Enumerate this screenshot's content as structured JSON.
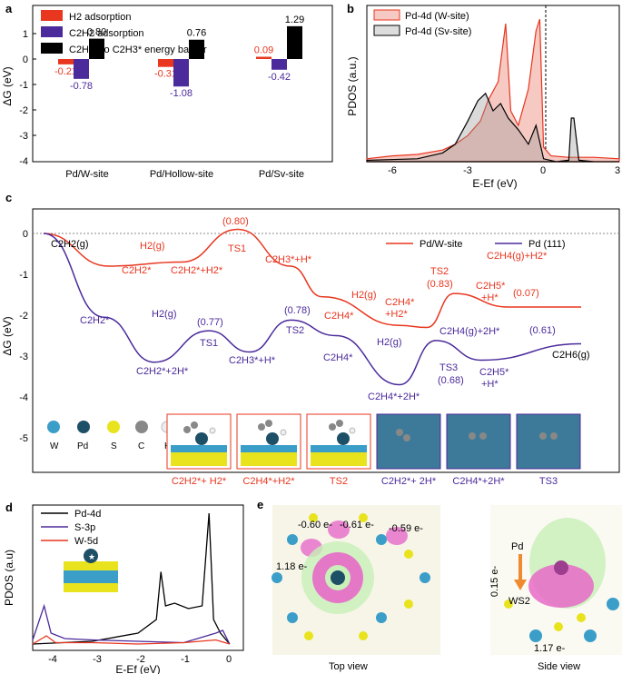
{
  "panels": {
    "a": "a",
    "b": "b",
    "c": "c",
    "d": "d",
    "e": "e"
  },
  "panel_a": {
    "ylabel": "ΔG (eV)",
    "yticks": [
      "1",
      "0",
      "-1",
      "-2",
      "-3",
      "-4"
    ],
    "legend": [
      "H2 adsorption",
      "C2H2 adsorption",
      "C2H2* to C2H3* energy barrier"
    ],
    "colors": {
      "h2": "#e8361f",
      "c2h2": "#4b2a9b",
      "barrier": "#000000"
    }
  },
  "panel_b": {
    "ylabel": "PDOS (a.u.)",
    "xlabel": "E-Ef (eV)",
    "xticks": [
      "-6",
      "-3",
      "0",
      "3"
    ],
    "legend": [
      "Pd-4d (W-site)",
      "Pd-4d (Sv-site)"
    ]
  },
  "panel_c": {
    "ylabel": "ΔG (eV)",
    "yticks": [
      "0",
      "-1",
      "-2",
      "-3",
      "-4",
      "-5"
    ],
    "legend": [
      "Pd/W-site",
      "Pd (111)"
    ],
    "colors": {
      "w_site": "#e8361f",
      "pd111": "#4b2a9b"
    },
    "labels": {
      "start": "C2H2(g)",
      "h2g_1": "H2(g)",
      "c2h2_red": "C2H2*",
      "c2h2h2_red": "C2H2*+H2*",
      "ts1_val": "(0.80)",
      "ts1": "TS1",
      "c2h3h": "C2H3*+H*",
      "h2g_2": "H2(g)",
      "c2h4h2_a": "C2H4*",
      "c2h4h2_b": "+H2*",
      "c2h4_red": "C2H4*",
      "ts2_red": "TS2",
      "ts2_red_val": "(0.83)",
      "c2h4g": "C2H4(g)+H2*",
      "c2h5_red_a": "C2H5*",
      "c2h5_red_b": "+H*",
      "val_007": "(0.07)",
      "c2h6": "C2H6(g)",
      "c2h2_blue": "C2H2*",
      "h2g_blue": "H2(g)",
      "c2h2_2h": "C2H2*+2H*",
      "ts1_blue_val": "(0.77)",
      "ts1_blue": "TS1",
      "c2h3h_blue": "C2H3*+H*",
      "ts2_blue_val": "(0.78)",
      "ts2_blue": "TS2",
      "c2h4_blue": "C2H4*",
      "h2g_blue2": "H2(g)",
      "c2h4_2h": "C2H4*+2H*",
      "c2h4g_2h": "C2H4(g)+2H*",
      "ts3": "TS3",
      "ts3_val": "(0.68)",
      "c2h5_blue_a": "C2H5*",
      "c2h5_blue_b": "+H*",
      "val_061": "(0.61)"
    },
    "atoms": [
      "W",
      "Pd",
      "S",
      "C",
      "H"
    ],
    "structures": [
      "C2H2*+ H2*",
      "C2H4*+H2*",
      "TS2",
      "C2H2*+ 2H*",
      "C2H4*+2H*",
      "TS3"
    ]
  },
  "panel_d": {
    "ylabel": "PDOS (a.u)",
    "xlabel": "E-Ef (eV)",
    "xticks": [
      "-4",
      "-3",
      "-2",
      "-1",
      "0"
    ],
    "legend": [
      "Pd-4d",
      "S-3p",
      "W-5d"
    ],
    "colors": {
      "pd": "#000000",
      "s": "#4b2a9b",
      "w": "#e8361f"
    }
  },
  "panel_e": {
    "top_view": "Top view",
    "side_view": "Side view",
    "charges": [
      "-0.60 e-",
      "-0.61 e-",
      "-0.59 e-",
      "1.18 e-",
      "0.15 e-",
      "1.17 e-"
    ],
    "pd": "Pd",
    "ws2": "WS2"
  },
  "chart_data": [
    {
      "type": "bar",
      "categories": [
        "Pd/W-site",
        "Pd/Hollow-site",
        "Pd/Sv-site"
      ],
      "series": [
        {
          "name": "H2 adsorption",
          "values": [
            -0.21,
            -0.31,
            0.09
          ]
        },
        {
          "name": "C2H2 adsorption",
          "values": [
            -0.78,
            -1.08,
            -0.42
          ]
        },
        {
          "name": "C2H2* to C2H3* energy barrier",
          "values": [
            0.8,
            0.76,
            1.29
          ]
        }
      ],
      "data_labels": {
        "h2": [
          "-0.21",
          "-0.31",
          "0.09"
        ],
        "c2h2": [
          "-0.78",
          "-1.08",
          "-0.42"
        ],
        "barrier": [
          "0.80",
          "0.76",
          "1.29"
        ]
      },
      "ylabel": "ΔG (eV)",
      "ylim": [
        -4,
        2
      ]
    },
    {
      "type": "area",
      "xlabel": "E-Ef (eV)",
      "ylabel": "PDOS (a.u.)",
      "xlim": [
        -7,
        3
      ],
      "series": [
        {
          "name": "Pd-4d (W-site)",
          "x": [
            -7,
            -6,
            -5,
            -4,
            -3.5,
            -3,
            -2.5,
            -2.2,
            -1.8,
            -1.5,
            -1.3,
            -1.0,
            -0.6,
            -0.3,
            -0.15,
            0,
            0.3,
            1,
            2,
            3
          ],
          "y": [
            0.02,
            0.04,
            0.05,
            0.08,
            0.12,
            0.18,
            0.28,
            0.42,
            0.55,
            0.95,
            0.35,
            0.25,
            0.5,
            0.9,
            0.98,
            0.1,
            0.04,
            0.03,
            0.03,
            0.02
          ]
        },
        {
          "name": "Pd-4d (Sv-site)",
          "x": [
            -7,
            -5,
            -4,
            -3.5,
            -3,
            -2.6,
            -2.3,
            -2,
            -1.7,
            -1.4,
            -1,
            -0.6,
            -0.3,
            0,
            0.5,
            1.0,
            1.1,
            1.2,
            1.4,
            2,
            3
          ],
          "y": [
            0.01,
            0.02,
            0.06,
            0.12,
            0.28,
            0.42,
            0.47,
            0.35,
            0.4,
            0.3,
            0.22,
            0.12,
            0.25,
            0.02,
            0.0,
            0.01,
            0.3,
            0.3,
            0.01,
            0,
            0
          ]
        }
      ]
    },
    {
      "type": "line",
      "ylabel": "ΔG (eV)",
      "ylim": [
        -5,
        0.5
      ],
      "series": [
        {
          "name": "Pd/W-site",
          "values": [
            0,
            -0.8,
            -0.7,
            0.1,
            -0.8,
            -1.55,
            -2.25,
            -2.3,
            -1.47,
            -1.8,
            -1.8
          ]
        },
        {
          "name": "Pd (111)",
          "values": [
            0,
            -2.05,
            -3.15,
            -2.38,
            -2.9,
            -2.12,
            -2.5,
            -3.7,
            -2.62,
            -3.1,
            -2.7
          ]
        }
      ]
    },
    {
      "type": "line",
      "xlabel": "E-Ef (eV)",
      "ylabel": "PDOS (a.u)",
      "xlim": [
        -4.3,
        0.3
      ],
      "series": [
        {
          "name": "Pd-4d",
          "x": [
            -4.3,
            -3,
            -2,
            -1.6,
            -1.5,
            -1.4,
            -1.2,
            -0.9,
            -0.6,
            -0.45,
            -0.4,
            -0.35,
            -0.2,
            0
          ],
          "y": [
            0.02,
            0.04,
            0.1,
            0.2,
            0.55,
            0.3,
            0.32,
            0.28,
            0.3,
            0.98,
            0.6,
            0.2,
            0.1,
            0.02
          ]
        },
        {
          "name": "S-3p",
          "x": [
            -4.3,
            -4.05,
            -3.9,
            -3.6,
            -3,
            -2,
            -1,
            -0.3,
            -0.15,
            0
          ],
          "y": [
            0.05,
            0.3,
            0.1,
            0.06,
            0.05,
            0.04,
            0.03,
            0.1,
            0.12,
            0.02
          ]
        },
        {
          "name": "W-5d",
          "x": [
            -4.3,
            -4.0,
            -3.8,
            -3,
            -2,
            -1,
            -0.3,
            0
          ],
          "y": [
            0.02,
            0.08,
            0.03,
            0.03,
            0.02,
            0.03,
            0.05,
            0.02
          ]
        }
      ]
    }
  ]
}
